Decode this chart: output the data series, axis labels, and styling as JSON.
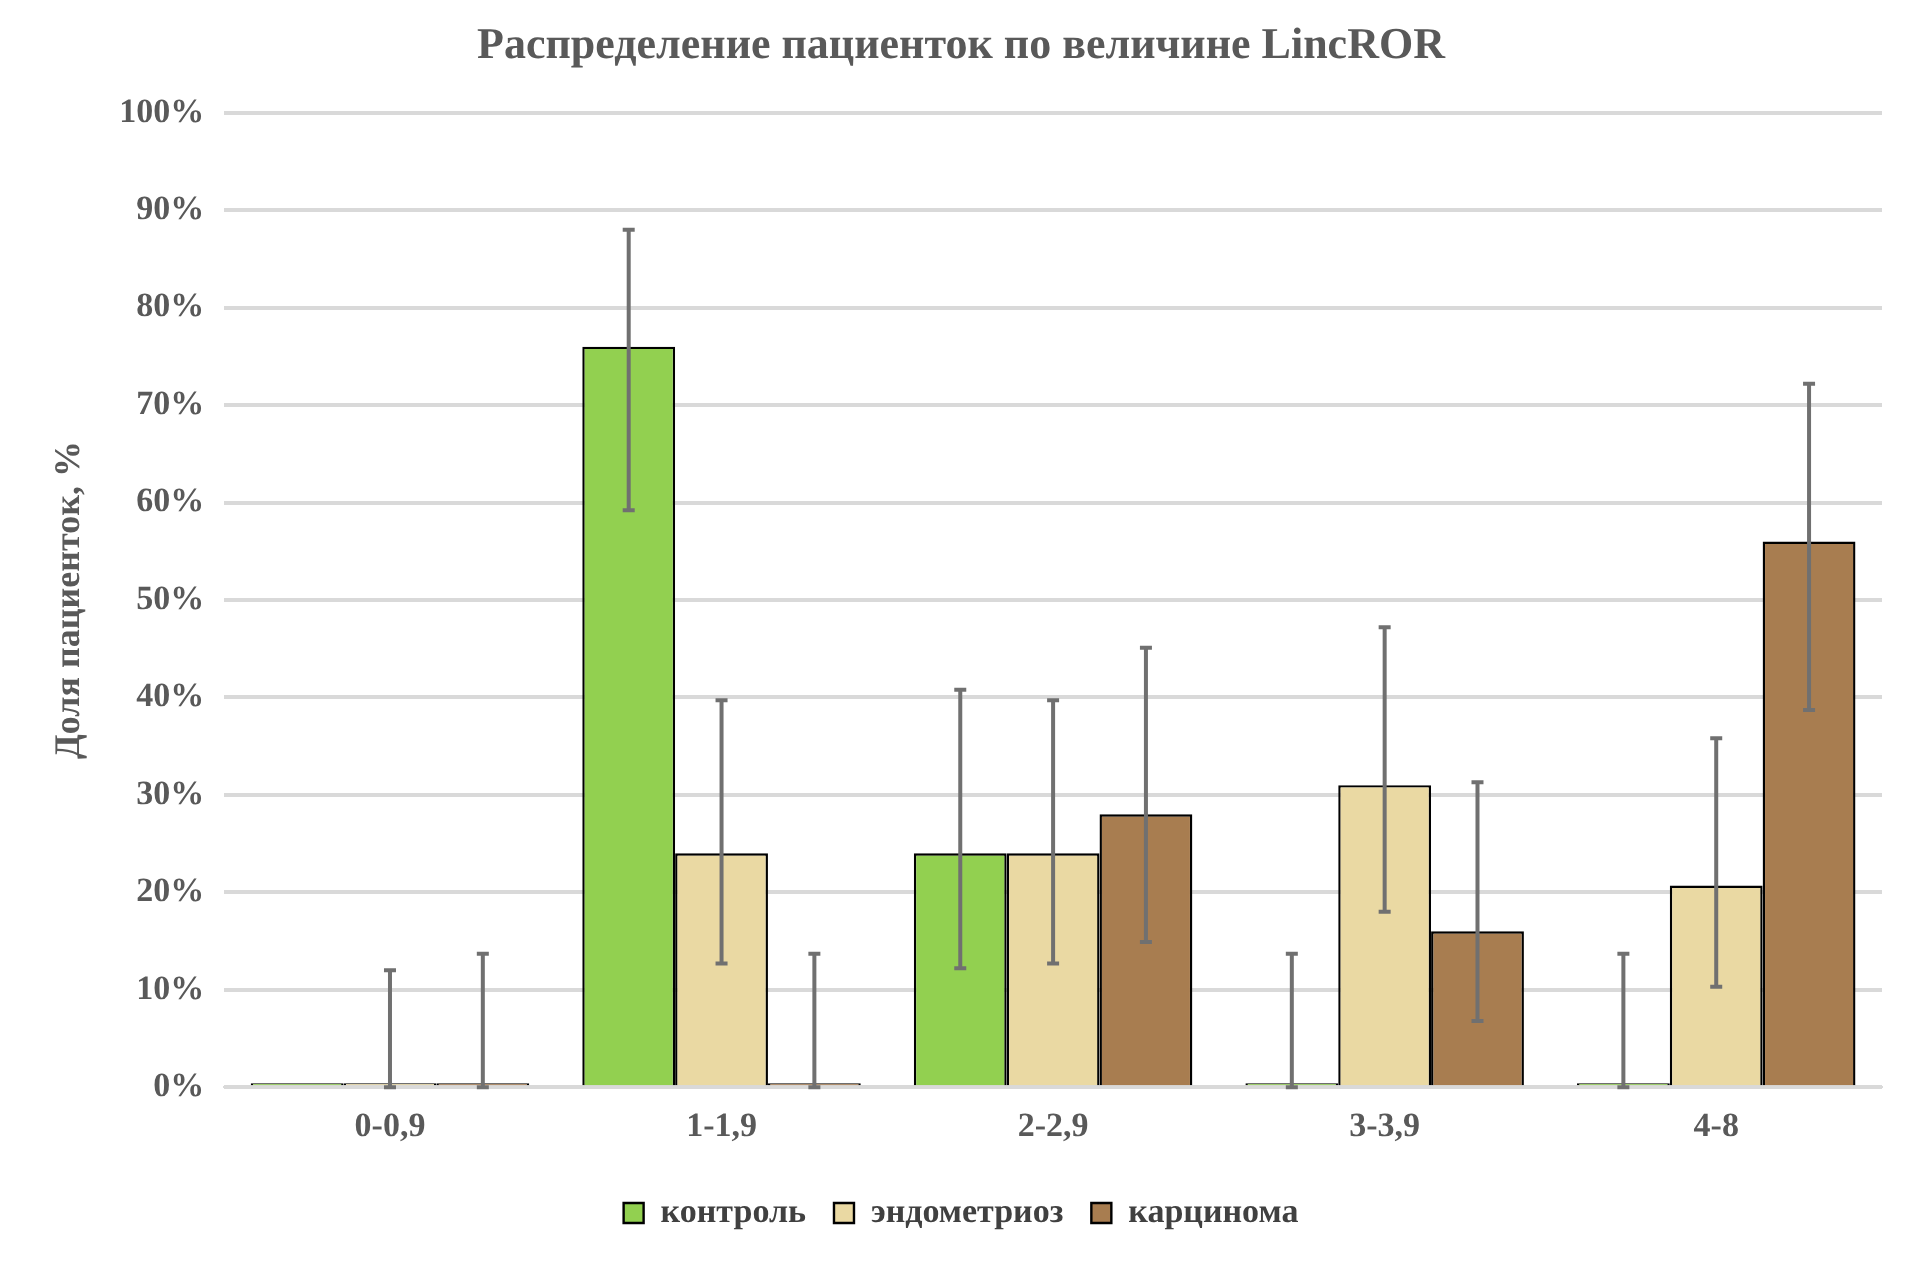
{
  "chart_data": {
    "type": "bar",
    "title": "Распределение пациенток по величине LincROR",
    "ylabel": "Доля пациенток, %",
    "categories": [
      "0-0,9",
      "1-1,9",
      "2-2,9",
      "3-3,9",
      "4-8"
    ],
    "series": [
      {
        "name": "контроль",
        "color": "#92d050",
        "values": [
          0,
          76,
          24,
          0,
          0
        ],
        "errors": [
          null,
          [
            59.2,
            88
          ],
          [
            12.2,
            40.8
          ],
          [
            0,
            13.7
          ],
          [
            0,
            13.7
          ]
        ]
      },
      {
        "name": "эндометриоз",
        "color": "#ead9a3",
        "values": [
          0,
          24,
          24,
          31,
          20.7
        ],
        "errors": [
          [
            0,
            12
          ],
          [
            12.7,
            39.7
          ],
          [
            12.7,
            39.7
          ],
          [
            18,
            47.2
          ],
          [
            10.3,
            35.8
          ]
        ]
      },
      {
        "name": "карцинома",
        "color": "#a87d50",
        "values": [
          0,
          0,
          28,
          16,
          56
        ],
        "errors": [
          [
            0,
            13.7
          ],
          [
            0,
            13.7
          ],
          [
            14.9,
            45.1
          ],
          [
            6.8,
            31.3
          ],
          [
            38.7,
            72.2
          ]
        ]
      }
    ],
    "ylim": [
      0,
      100
    ],
    "yticks": [
      {
        "value": 0,
        "label": "0%"
      },
      {
        "value": 10,
        "label": "10%"
      },
      {
        "value": 20,
        "label": "20%"
      },
      {
        "value": 30,
        "label": "30%"
      },
      {
        "value": 40,
        "label": "40%"
      },
      {
        "value": 50,
        "label": "50%"
      },
      {
        "value": 60,
        "label": "60%"
      },
      {
        "value": 70,
        "label": "70%"
      },
      {
        "value": 80,
        "label": "80%"
      },
      {
        "value": 90,
        "label": "90%"
      },
      {
        "value": 100,
        "label": "100%"
      }
    ],
    "grid": "y",
    "legend": "bottom"
  }
}
